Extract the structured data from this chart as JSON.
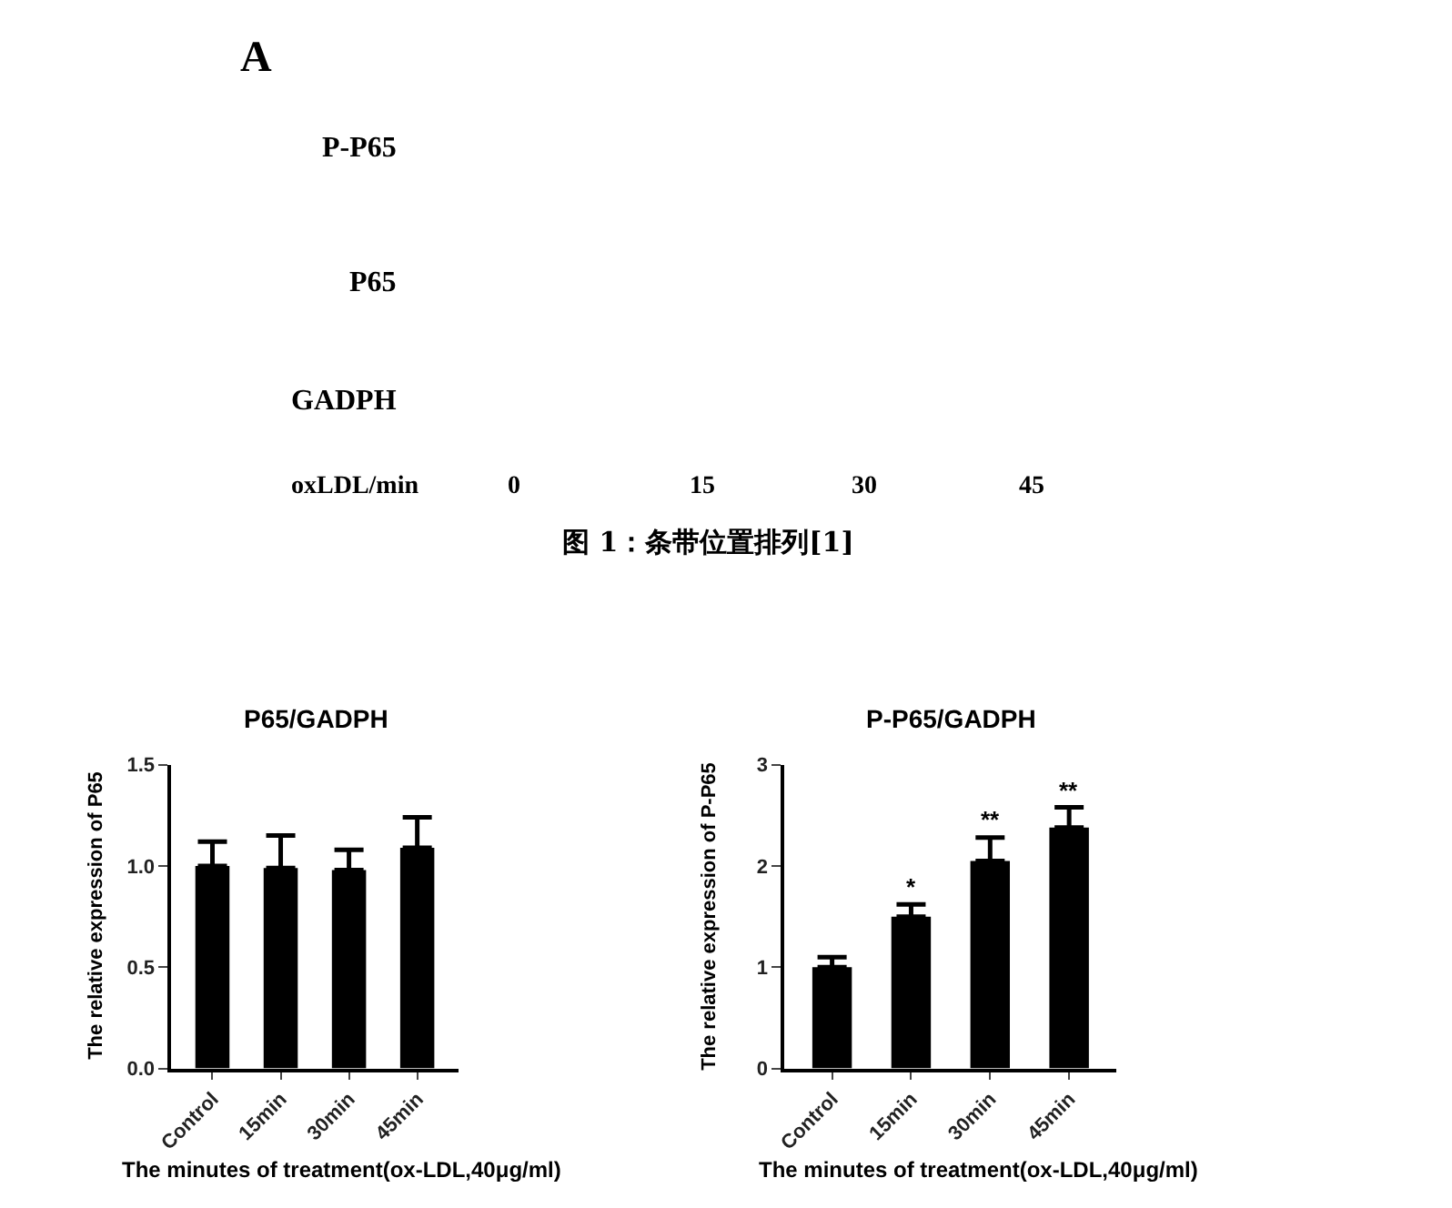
{
  "chart_data": [
    {
      "type": "other",
      "title": "图 1：条带位置排列[1]",
      "annotations": [
        "A",
        "P-P65",
        "P65",
        "GADPH",
        "oxLDL/min",
        "0",
        "15",
        "30",
        "45"
      ]
    },
    {
      "type": "bar",
      "title": "P65/GADPH",
      "xlabel": "The minutes of treatment(ox-LDL,40μg/ml)",
      "ylabel": "The relative expression of P65",
      "categories": [
        "Control",
        "15min",
        "30min",
        "45min"
      ],
      "values": [
        1.0,
        0.99,
        0.98,
        1.09
      ],
      "errors": [
        [
          1.0,
          1.12
        ],
        [
          0.99,
          1.15
        ],
        [
          0.98,
          1.08
        ],
        [
          1.09,
          1.24
        ]
      ],
      "color": "#000000",
      "ylim": [
        0,
        1.5
      ],
      "yticks": [
        {
          "value": 0,
          "label": "0.0"
        },
        {
          "value": 0.5,
          "label": "0.5"
        },
        {
          "value": 1,
          "label": "1.0"
        },
        {
          "value": 1.5,
          "label": "1.5"
        }
      ]
    },
    {
      "type": "bar",
      "title": "P-P65/GADPH",
      "xlabel": "The minutes of treatment(ox-LDL,40μg/ml)",
      "ylabel": "The relative expression of P-P65",
      "categories": [
        "Control",
        "15min",
        "30min",
        "45min"
      ],
      "values": [
        1.0,
        1.5,
        2.05,
        2.38
      ],
      "errors": [
        [
          1.0,
          1.1
        ],
        [
          1.5,
          1.62
        ],
        [
          2.05,
          2.28
        ],
        [
          2.38,
          2.58
        ]
      ],
      "color": "#000000",
      "ylim": [
        0,
        3
      ],
      "yticks": [
        0,
        1,
        2,
        3
      ],
      "annotations": [
        "*",
        "**",
        "**"
      ]
    }
  ]
}
